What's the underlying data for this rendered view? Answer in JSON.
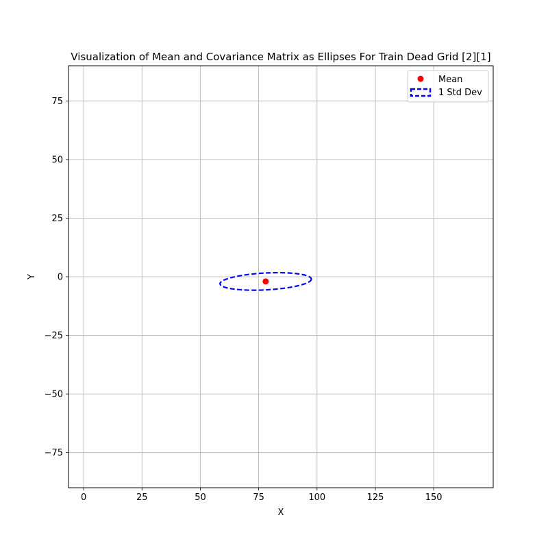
{
  "chart_data": {
    "type": "scatter",
    "title": "Visualization of Mean and Covariance Matrix as Ellipses For Train Dead Grid [2][1]",
    "xlabel": "X",
    "ylabel": "Y",
    "xlim": [
      -6.5,
      175.5
    ],
    "ylim": [
      -90,
      90
    ],
    "xticks": [
      0,
      25,
      50,
      75,
      100,
      125,
      150
    ],
    "xtick_labels": [
      "0",
      "25",
      "50",
      "75",
      "100",
      "125",
      "150"
    ],
    "yticks": [
      -75,
      -50,
      -25,
      0,
      25,
      50,
      75
    ],
    "ytick_labels": [
      "−75",
      "−50",
      "−25",
      "0",
      "25",
      "50",
      "75"
    ],
    "grid": true,
    "legend_position": "top-right",
    "series": [
      {
        "name": "Mean",
        "kind": "point",
        "x": 78,
        "y": -2,
        "color": "#ff0000"
      },
      {
        "name": "1 Std Dev",
        "kind": "ellipse",
        "center": [
          78,
          -2
        ],
        "rx": 19.6,
        "ry": 3.6,
        "angle_deg": 3,
        "color": "#0000ff",
        "linestyle": "dashed"
      }
    ]
  }
}
